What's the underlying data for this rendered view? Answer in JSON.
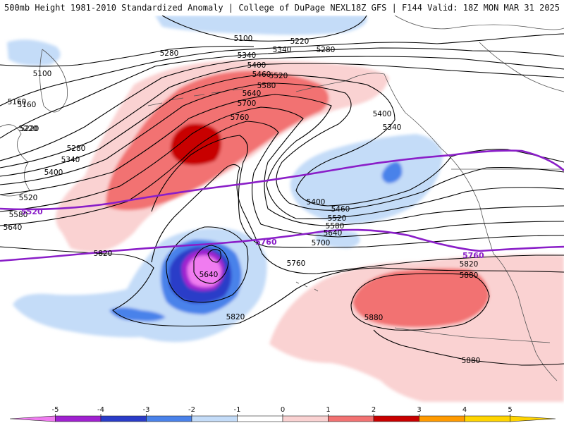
{
  "header": {
    "left": "500mb Height 1981-2010 Standardized Anomaly | College of DuPage NEXLAB",
    "right": "18Z GFS | F144 Valid: 18Z MON MAR 31 2025"
  },
  "colors": {
    "anom_neg5": "#f07cf0",
    "anom_neg4": "#a020d0",
    "anom_neg3": "#2a3cc8",
    "anom_neg2": "#4a82ea",
    "anom_neg1": "#c4dcf8",
    "anom_pos1": "#fad2d2",
    "anom_pos2": "#f27272",
    "anom_pos3": "#c80000",
    "anom_pos4": "#ff9a00",
    "anom_pos5": "#ffd400",
    "reference_contour": "#8a1ec8",
    "height_contour": "#000000",
    "coastline": "#555555"
  },
  "height_labels": [
    "5100",
    "5100",
    "5160",
    "5220",
    "5280",
    "5340",
    "5280",
    "5340",
    "5220",
    "5400",
    "5460",
    "5520",
    "5580",
    "5640",
    "5700",
    "5760",
    "5160",
    "5220",
    "5280",
    "5340",
    "5400",
    "5520",
    "5580",
    "5640",
    "5400",
    "5340",
    "5400",
    "5460",
    "5520",
    "5580",
    "5640",
    "5700",
    "5760",
    "5820",
    "5820",
    "5640",
    "5820",
    "5880",
    "5880",
    "5880"
  ],
  "reference_labels": [
    "5520",
    "5760",
    "5760"
  ],
  "colorbar": {
    "ticks": [
      "-5",
      "-4",
      "-3",
      "-2",
      "-1",
      "0",
      "1",
      "2",
      "3",
      "4",
      "5"
    ]
  }
}
